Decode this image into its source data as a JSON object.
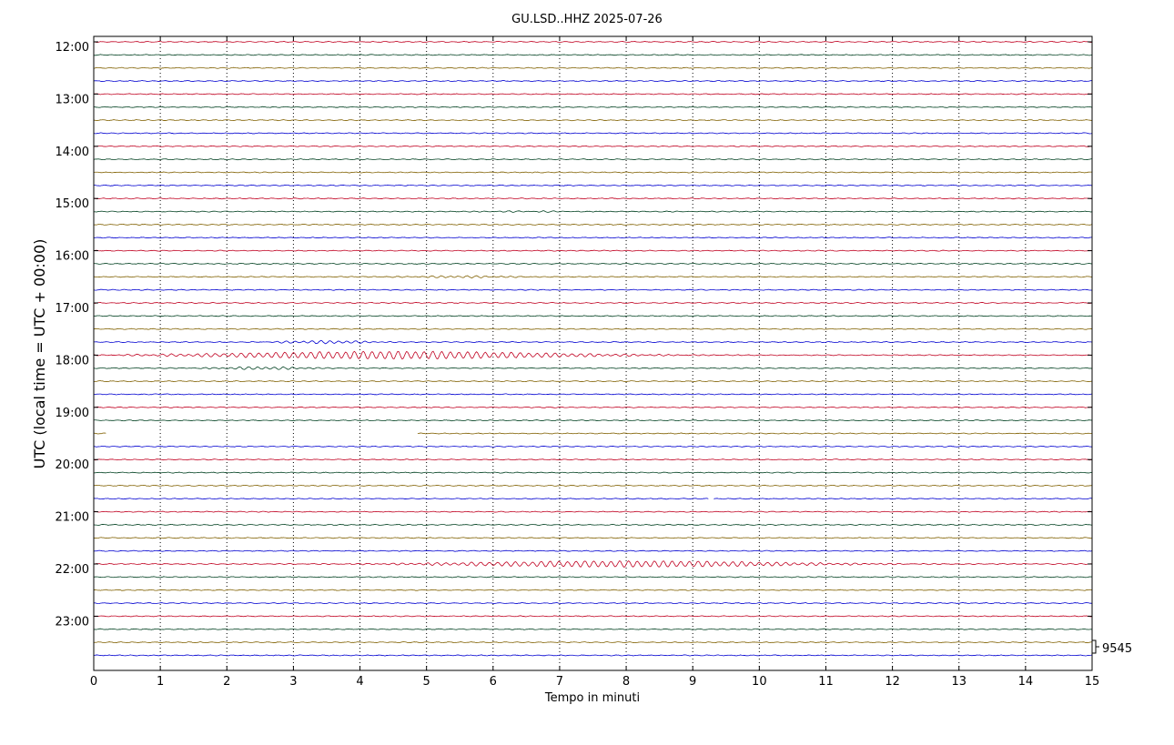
{
  "chart_data": {
    "type": "line",
    "title": "GU.LSD..HHZ 2025-07-26",
    "xlabel": "Tempo in minuti",
    "ylabel": "UTC (local time = UTC + 00:00)",
    "xlim": [
      0,
      15
    ],
    "x_ticks": [
      "0",
      "1",
      "2",
      "3",
      "4",
      "5",
      "6",
      "7",
      "8",
      "9",
      "10",
      "11",
      "12",
      "13",
      "14",
      "15"
    ],
    "y_tick_labels": [
      "12:00",
      "13:00",
      "14:00",
      "15:00",
      "16:00",
      "17:00",
      "18:00",
      "19:00",
      "20:00",
      "21:00",
      "22:00",
      "23:00"
    ],
    "scale_label": "9545",
    "trace_interval_minutes": 15,
    "start_time": "12:00",
    "trace_count": 48,
    "trace_colors": [
      "#c00020",
      "#004020",
      "#806000",
      "#0000d0"
    ],
    "grid": "vertical dotted at each minute",
    "events": [
      {
        "time": "15:15",
        "x_minutes": 6.5,
        "amplitude": 0.3
      },
      {
        "time": "16:30",
        "x_minutes": 5.5,
        "amplitude": 0.6
      },
      {
        "time": "17:45",
        "x_minutes": 3.5,
        "amplitude": 0.9
      },
      {
        "time": "18:00",
        "x_minutes": 4.5,
        "amplitude": 2.5
      },
      {
        "time": "18:15",
        "x_minutes": 2.5,
        "amplitude": 0.8
      },
      {
        "time": "22:00",
        "x_minutes": 8.0,
        "amplitude": 2.0
      }
    ],
    "gaps": [
      {
        "time": "19:30",
        "from_minutes": 0.2,
        "to_minutes": 4.85
      },
      {
        "time": "20:45",
        "from_minutes": 9.25,
        "to_minutes": 9.3
      }
    ]
  }
}
